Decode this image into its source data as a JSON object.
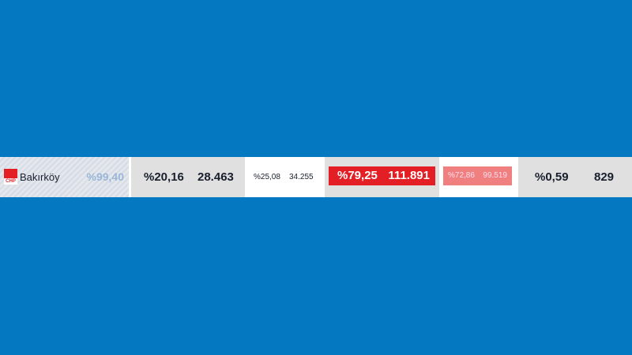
{
  "district": {
    "name": "Bakırköy",
    "party_logo_text": "CHP",
    "counted_percent": "%99,40"
  },
  "candidate1": {
    "percent": "%20,16",
    "votes": "28.463",
    "prev_percent": "%25,08",
    "prev_votes": "34.255"
  },
  "candidate2": {
    "percent": "%79,25",
    "votes": "111.891",
    "prev_percent": "%72,86",
    "prev_votes": "99.519"
  },
  "other": {
    "percent": "%0,59",
    "votes": "829"
  },
  "colors": {
    "background": "#0479c2",
    "winner": "#e31e24",
    "winner_prev": "#f08080"
  }
}
